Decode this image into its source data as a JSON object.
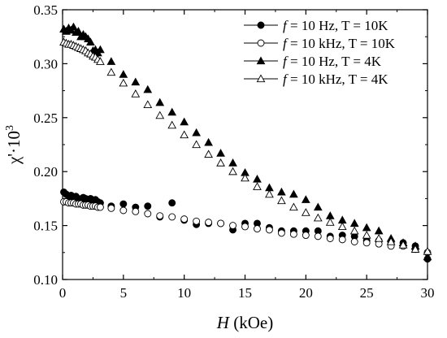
{
  "chart_data": {
    "type": "scatter",
    "xlabel": "H (kOe)",
    "xlabel_parts": {
      "var": "H",
      "unit": " (kOe)"
    },
    "ylabel": "χ'·10³",
    "ylabel_parts": {
      "base": "χ'·10",
      "sup": "3"
    },
    "xlim": [
      0,
      30
    ],
    "ylim": [
      0.1,
      0.35
    ],
    "xticks": [
      0,
      5,
      10,
      15,
      20,
      25,
      30
    ],
    "xtick_labels": [
      "0",
      "5",
      "10",
      "15",
      "20",
      "25",
      "30"
    ],
    "yticks": [
      0.1,
      0.15,
      0.2,
      0.25,
      0.3,
      0.35
    ],
    "ytick_labels": [
      "0.10",
      "0.15",
      "0.20",
      "0.25",
      "0.30",
      "0.35"
    ],
    "grid": false,
    "legend_position": "top-right",
    "series": [
      {
        "name": "f = 10 Hz,   T = 10K",
        "legend_var": "f",
        "legend_rest": " = 10 Hz,   T = 10K",
        "marker": "circle",
        "filled": true,
        "x": [
          0.1,
          0.3,
          0.5,
          0.7,
          0.9,
          1.1,
          1.3,
          1.5,
          1.7,
          1.9,
          2.1,
          2.3,
          2.5,
          2.7,
          2.9,
          3.1,
          4,
          5,
          6,
          7,
          8,
          9,
          10,
          11,
          12,
          13,
          14,
          15,
          16,
          17,
          18,
          19,
          20,
          21,
          22,
          23,
          24,
          25,
          26,
          27,
          28,
          29,
          30
        ],
        "y": [
          0.181,
          0.179,
          0.177,
          0.178,
          0.176,
          0.177,
          0.175,
          0.174,
          0.176,
          0.175,
          0.174,
          0.175,
          0.173,
          0.174,
          0.172,
          0.171,
          0.168,
          0.17,
          0.167,
          0.168,
          0.158,
          0.171,
          0.155,
          0.151,
          0.152,
          0.152,
          0.146,
          0.152,
          0.152,
          0.148,
          0.145,
          0.145,
          0.145,
          0.145,
          0.14,
          0.141,
          0.14,
          0.136,
          0.136,
          0.134,
          0.134,
          0.131,
          0.119
        ]
      },
      {
        "name": "f = 10 kHz, T = 10K",
        "legend_var": "f",
        "legend_rest": " = 10 kHz, T = 10K",
        "marker": "circle",
        "filled": false,
        "x": [
          0.1,
          0.3,
          0.5,
          0.7,
          0.9,
          1.1,
          1.3,
          1.5,
          1.7,
          1.9,
          2.1,
          2.3,
          2.5,
          2.7,
          2.9,
          3.1,
          4,
          5,
          6,
          7,
          8,
          9,
          10,
          11,
          12,
          13,
          14,
          15,
          16,
          17,
          18,
          19,
          20,
          21,
          22,
          23,
          24,
          25,
          26,
          27,
          28,
          29,
          30
        ],
        "y": [
          0.172,
          0.172,
          0.171,
          0.171,
          0.171,
          0.17,
          0.17,
          0.17,
          0.169,
          0.169,
          0.169,
          0.168,
          0.168,
          0.168,
          0.167,
          0.167,
          0.166,
          0.164,
          0.163,
          0.161,
          0.159,
          0.158,
          0.156,
          0.154,
          0.153,
          0.152,
          0.15,
          0.149,
          0.147,
          0.146,
          0.143,
          0.142,
          0.141,
          0.14,
          0.138,
          0.137,
          0.135,
          0.134,
          0.133,
          0.131,
          0.131,
          0.128,
          0.125
        ]
      },
      {
        "name": "f = 10 Hz,   T = 4K",
        "legend_var": "f",
        "legend_rest": " = 10 Hz,   T = 4K",
        "marker": "triangle",
        "filled": true,
        "x": [
          0.1,
          0.3,
          0.5,
          0.7,
          0.9,
          1.1,
          1.3,
          1.5,
          1.7,
          1.9,
          2.1,
          2.3,
          2.5,
          2.7,
          2.9,
          3.1,
          4,
          5,
          6,
          7,
          8,
          9,
          10,
          11,
          12,
          13,
          14,
          15,
          16,
          17,
          18,
          19,
          20,
          21,
          22,
          23,
          24,
          25,
          26,
          27,
          28,
          29,
          30
        ],
        "y": [
          0.332,
          0.33,
          0.333,
          0.331,
          0.334,
          0.329,
          0.33,
          0.325,
          0.327,
          0.325,
          0.323,
          0.32,
          0.312,
          0.313,
          0.31,
          0.313,
          0.302,
          0.29,
          0.283,
          0.276,
          0.264,
          0.255,
          0.246,
          0.236,
          0.227,
          0.217,
          0.208,
          0.199,
          0.193,
          0.185,
          0.181,
          0.179,
          0.174,
          0.167,
          0.159,
          0.155,
          0.152,
          0.148,
          0.145,
          0.138,
          0.134,
          0.131,
          0.121
        ]
      },
      {
        "name": "f = 10 kHz, T = 4K",
        "legend_var": "f",
        "legend_rest": " = 10 kHz, T = 4K",
        "marker": "triangle",
        "filled": false,
        "x": [
          0.1,
          0.3,
          0.5,
          0.7,
          0.9,
          1.1,
          1.3,
          1.5,
          1.7,
          1.9,
          2.1,
          2.3,
          2.5,
          2.7,
          2.9,
          3.1,
          4,
          5,
          6,
          7,
          8,
          9,
          10,
          11,
          12,
          13,
          14,
          15,
          16,
          17,
          18,
          19,
          20,
          21,
          22,
          23,
          24,
          25,
          26,
          27,
          28,
          29,
          30
        ],
        "y": [
          0.32,
          0.319,
          0.318,
          0.318,
          0.317,
          0.316,
          0.315,
          0.314,
          0.313,
          0.312,
          0.31,
          0.309,
          0.307,
          0.306,
          0.304,
          0.302,
          0.292,
          0.282,
          0.272,
          0.262,
          0.252,
          0.243,
          0.234,
          0.225,
          0.216,
          0.208,
          0.2,
          0.194,
          0.186,
          0.179,
          0.173,
          0.167,
          0.162,
          0.157,
          0.153,
          0.149,
          0.145,
          0.141,
          0.138,
          0.135,
          0.132,
          0.128,
          0.126
        ]
      }
    ]
  }
}
